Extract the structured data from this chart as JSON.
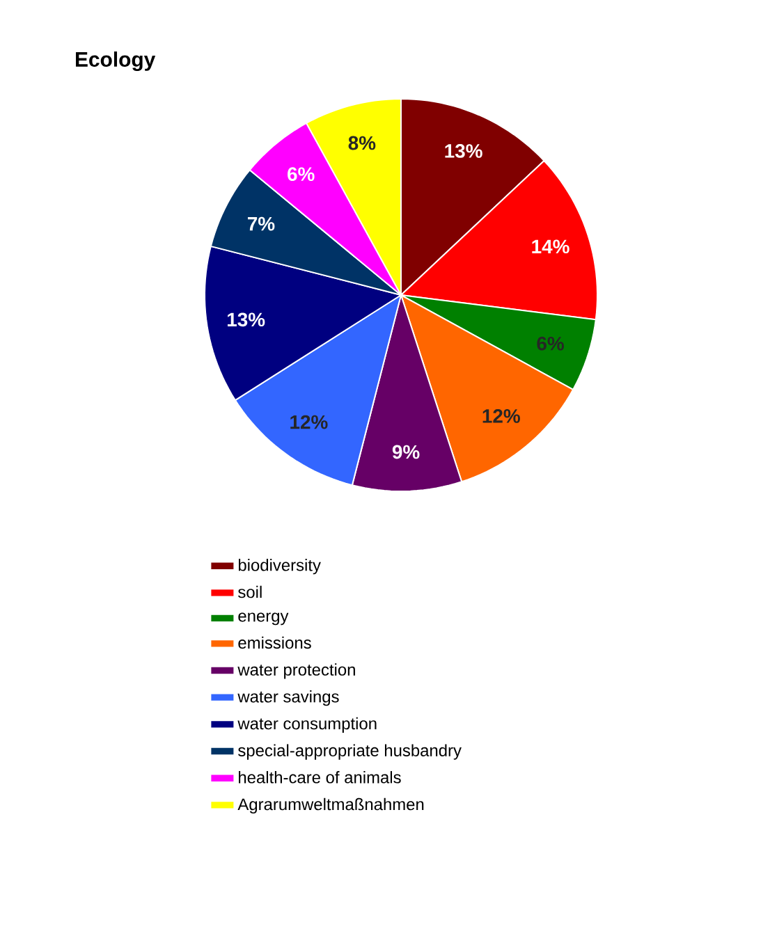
{
  "chart_data": {
    "type": "pie",
    "title": "Ecology",
    "categories": [
      "biodiversity",
      "soil",
      "energy",
      "emissions",
      "water protection",
      "water savings",
      "water consumption",
      "special-appropriate husbandry",
      "health-care of animals",
      "Agrarumweltmaßnahmen"
    ],
    "values": [
      13,
      14,
      6,
      12,
      9,
      12,
      13,
      7,
      6,
      8
    ],
    "value_labels": [
      "13%",
      "14%",
      "6%",
      "12%",
      "9%",
      "12%",
      "13%",
      "7%",
      "6%",
      "8%"
    ],
    "colors": [
      "#800000",
      "#ff0000",
      "#008000",
      "#ff6600",
      "#660066",
      "#3366ff",
      "#000080",
      "#003366",
      "#ff00ff",
      "#ffff00"
    ],
    "legend": "bottom"
  }
}
